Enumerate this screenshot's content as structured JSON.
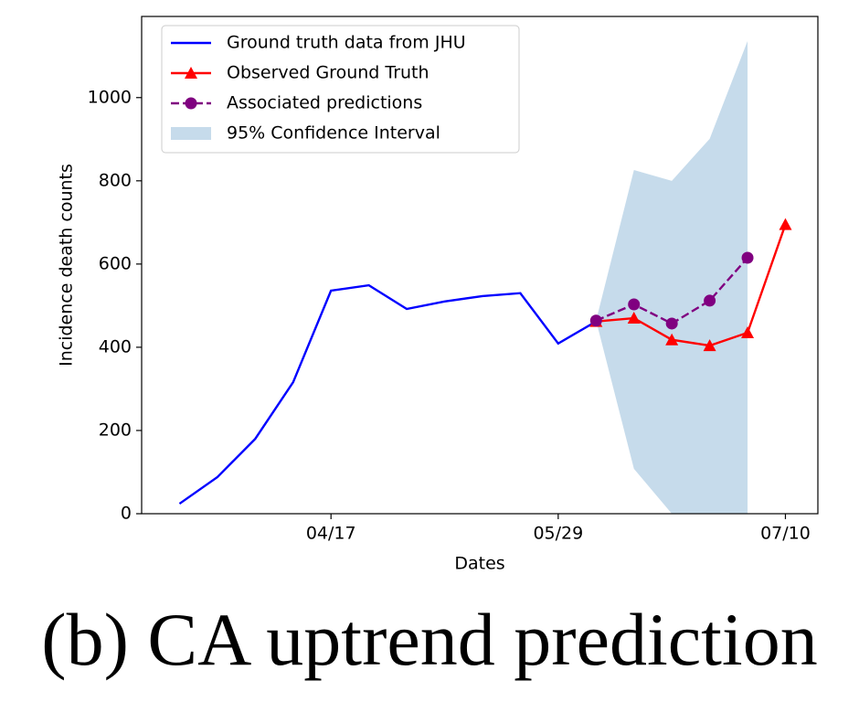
{
  "chart_data": {
    "type": "line",
    "xlabel": "Dates",
    "ylabel": "Incidence death counts",
    "caption": "(b) CA uptrend prediction",
    "xlim": [
      "03/13",
      "07/16"
    ],
    "xticks": [
      "04/17",
      "05/29",
      "07/10"
    ],
    "ylim": [
      0,
      1195
    ],
    "yticks": [
      0,
      200,
      400,
      600,
      800,
      1000
    ],
    "legend": "upper left",
    "band": {
      "name": "95% Confidence Interval",
      "color": "#c6dbeb",
      "x": [
        "06/05",
        "06/12",
        "06/19",
        "06/26",
        "07/03"
      ],
      "lower": [
        464,
        108,
        0,
        0,
        0
      ],
      "upper": [
        464,
        826,
        800,
        901,
        1136
      ]
    },
    "series": [
      {
        "name": "Ground truth data from JHU",
        "color": "#0000ff",
        "linestyle": "solid",
        "marker": "none",
        "x": [
          "03/20",
          "03/27",
          "04/03",
          "04/10",
          "04/17",
          "04/24",
          "05/01",
          "05/08",
          "05/15",
          "05/22",
          "05/29",
          "06/05"
        ],
        "values": [
          24,
          88,
          180,
          316,
          536,
          549,
          492,
          510,
          523,
          530,
          409,
          462
        ]
      },
      {
        "name": "Observed Ground Truth",
        "color": "#ff0000",
        "linestyle": "solid",
        "marker": "triangle",
        "x": [
          "06/05",
          "06/12",
          "06/19",
          "06/26",
          "07/03",
          "07/10"
        ],
        "values": [
          462,
          470,
          418,
          404,
          435,
          695
        ]
      },
      {
        "name": "Associated predictions",
        "color": "#800080",
        "linestyle": "dashed",
        "marker": "circle",
        "x": [
          "06/05",
          "06/12",
          "06/19",
          "06/26",
          "07/03"
        ],
        "values": [
          464,
          503,
          457,
          512,
          615
        ]
      }
    ]
  }
}
